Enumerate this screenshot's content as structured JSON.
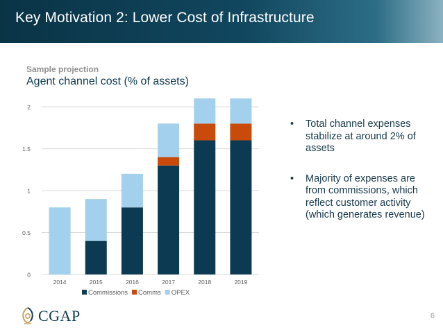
{
  "slide": {
    "title": "Key Motivation 2: Lower Cost of Infrastructure",
    "page_number": "6",
    "logo_text": "CGAP"
  },
  "subtitle": {
    "small": "Sample projection",
    "main": "Agent channel cost (% of assets)"
  },
  "bullets": [
    "Total channel expenses stabilize at around 2% of assets",
    "Majority of expenses are from commissions, which reflect customer activity (which generates revenue)"
  ],
  "bullet_glyph": "•",
  "chart_data": {
    "type": "bar",
    "stacked": true,
    "title": "Agent channel cost (% of assets)",
    "categories": [
      "2014",
      "2015",
      "2016",
      "2017",
      "2018",
      "2019"
    ],
    "series": [
      {
        "name": "Commissions",
        "color": "#0b3a52",
        "values": [
          0,
          0.4,
          0.8,
          1.3,
          1.6,
          1.6
        ]
      },
      {
        "name": "Comms",
        "color": "#c84b0c",
        "values": [
          0,
          0,
          0,
          0.1,
          0.2,
          0.2
        ]
      },
      {
        "name": "OPEX",
        "color": "#a3d0ec",
        "values": [
          0.8,
          0.5,
          0.4,
          0.4,
          0.3,
          0.3
        ]
      }
    ],
    "ylim": [
      0,
      2.1
    ],
    "yticks": [
      "0",
      "0.5",
      "1",
      "1.5",
      "2"
    ],
    "ytick_values": [
      0,
      0.5,
      1,
      1.5,
      2
    ],
    "grid": true,
    "legend_position": "bottom",
    "xlabel": "",
    "ylabel": ""
  },
  "colors": {
    "header_dark": "#0a3346",
    "header_light": "#8bb2c2",
    "grid": "#d9d9d9",
    "tick_text": "#595959"
  }
}
